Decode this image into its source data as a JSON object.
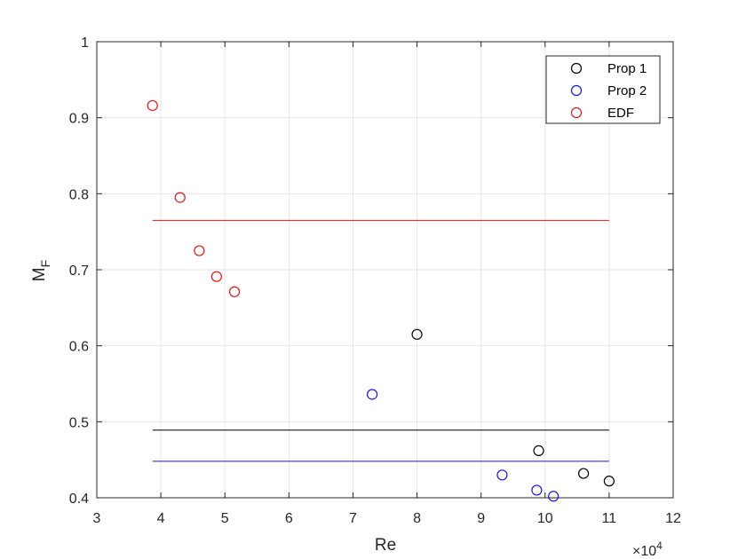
{
  "chart_data": {
    "type": "scatter",
    "xlabel": "Re",
    "ylabel_main": "M",
    "ylabel_sub": "F",
    "x_multiplier": {
      "prefix": "×10",
      "exponent": "4"
    },
    "xlim": [
      3,
      12
    ],
    "ylim": [
      0.4,
      1.0
    ],
    "x_ticks": [
      3,
      4,
      5,
      6,
      7,
      8,
      9,
      10,
      11,
      12
    ],
    "x_tick_labels": [
      "3",
      "4",
      "5",
      "6",
      "7",
      "8",
      "9",
      "10",
      "11",
      "12"
    ],
    "y_ticks": [
      0.4,
      0.5,
      0.6,
      0.7,
      0.8,
      0.9,
      1.0
    ],
    "y_tick_labels": [
      "0.4",
      "0.5",
      "0.6",
      "0.7",
      "0.8",
      "0.9",
      "1"
    ],
    "grid": true,
    "legend_position": "top-right",
    "series": [
      {
        "name": "Prop 1",
        "color": "#000000",
        "marker": "circle",
        "points": [
          [
            8.0,
            0.615
          ],
          [
            9.9,
            0.462
          ],
          [
            10.6,
            0.432
          ],
          [
            11.0,
            0.422
          ]
        ],
        "mean_line": {
          "y": 0.489,
          "x_range": [
            3.87,
            11.0
          ]
        }
      },
      {
        "name": "Prop 2",
        "color": "#1414e6",
        "marker": "circle",
        "points": [
          [
            7.3,
            0.536
          ],
          [
            9.33,
            0.43
          ],
          [
            9.87,
            0.41
          ],
          [
            10.13,
            0.402
          ]
        ],
        "mean_line": {
          "y": 0.448,
          "x_range": [
            3.87,
            11.0
          ]
        }
      },
      {
        "name": "EDF",
        "color": "#e61414",
        "marker": "circle",
        "points": [
          [
            3.87,
            0.916
          ],
          [
            4.3,
            0.795
          ],
          [
            4.6,
            0.725
          ],
          [
            4.87,
            0.691
          ],
          [
            5.15,
            0.671
          ]
        ],
        "mean_line": {
          "y": 0.765,
          "x_range": [
            3.87,
            11.0
          ]
        }
      }
    ]
  }
}
